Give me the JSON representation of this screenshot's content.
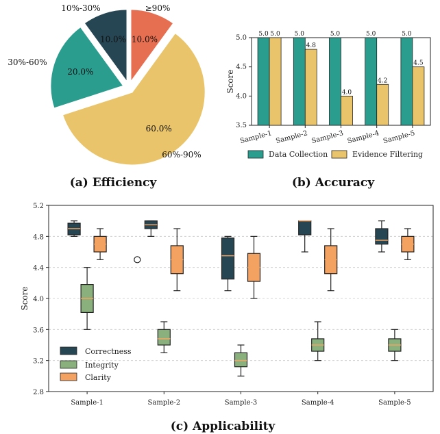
{
  "colors": {
    "dark": "#264653",
    "teal": "#2a9d8f",
    "sand": "#e9c46a",
    "orange": "#e76f51",
    "integrity": "#8ab17d",
    "clarity": "#f4a261",
    "median": "#f4a261"
  },
  "chart_data": [
    {
      "type": "pie",
      "caption": "(a) Efficiency",
      "slices": [
        {
          "label": "≥90%",
          "value": 10.0,
          "pct_label": "10.0%",
          "color": "#e76f51"
        },
        {
          "label": "60%-90%",
          "value": 60.0,
          "pct_label": "60.0%",
          "color": "#e9c46a"
        },
        {
          "label": "30%-60%",
          "value": 20.0,
          "pct_label": "20.0%",
          "color": "#2a9d8f"
        },
        {
          "label": "10%-30%",
          "value": 10.0,
          "pct_label": "10.0%",
          "color": "#264653"
        }
      ]
    },
    {
      "type": "bar",
      "caption": "(b) Accuracy",
      "ylabel": "Score",
      "ylim": [
        3.5,
        5.0
      ],
      "yticks": [
        "3.5",
        "4.0",
        "4.5",
        "5.0"
      ],
      "categories": [
        "Sample-1",
        "Sample-2",
        "Sample-3",
        "Sample-4",
        "Sample-5"
      ],
      "series": [
        {
          "name": "Data Collection",
          "color": "#2a9d8f",
          "values": [
            5.0,
            5.0,
            5.0,
            5.0,
            5.0
          ],
          "labels": [
            "5.0",
            "5.0",
            "5.0",
            "5.0",
            "5.0"
          ]
        },
        {
          "name": "Evidence Filtering",
          "color": "#e9c46a",
          "values": [
            5.0,
            4.8,
            4.0,
            4.2,
            4.5
          ],
          "labels": [
            "5.0",
            "4.8",
            "4.0",
            "4.2",
            "4.5"
          ]
        }
      ],
      "legend": "bottom"
    },
    {
      "type": "box",
      "caption": "(c) Applicability",
      "ylabel": "Score",
      "ylim": [
        2.8,
        5.2
      ],
      "yticks": [
        "2.8",
        "3.2",
        "3.6",
        "4.0",
        "4.4",
        "4.8",
        "5.2"
      ],
      "grid": true,
      "categories": [
        "Sample-1",
        "Sample-2",
        "Sample-3",
        "Sample-4",
        "Sample-5"
      ],
      "series": [
        {
          "name": "Correctness",
          "color": "#264653",
          "boxes": [
            {
              "min": 4.8,
              "q1": 4.82,
              "median": 4.9,
              "q3": 4.97,
              "max": 5.0,
              "outliers": []
            },
            {
              "min": 4.8,
              "q1": 4.9,
              "median": 4.95,
              "q3": 5.0,
              "max": 5.0,
              "outliers": [
                4.5
              ]
            },
            {
              "min": 4.1,
              "q1": 4.25,
              "median": 4.55,
              "q3": 4.78,
              "max": 4.8,
              "outliers": []
            },
            {
              "min": 4.6,
              "q1": 4.82,
              "median": 5.0,
              "q3": 5.0,
              "max": 5.0,
              "outliers": []
            },
            {
              "min": 4.6,
              "q1": 4.7,
              "median": 4.75,
              "q3": 4.9,
              "max": 5.0,
              "outliers": []
            }
          ]
        },
        {
          "name": "Integrity",
          "color": "#8ab17d",
          "boxes": [
            {
              "min": 3.6,
              "q1": 3.82,
              "median": 4.0,
              "q3": 4.18,
              "max": 4.4,
              "outliers": []
            },
            {
              "min": 3.3,
              "q1": 3.4,
              "median": 3.48,
              "q3": 3.6,
              "max": 3.7,
              "outliers": []
            },
            {
              "min": 3.0,
              "q1": 3.12,
              "median": 3.2,
              "q3": 3.3,
              "max": 3.4,
              "outliers": []
            },
            {
              "min": 3.2,
              "q1": 3.32,
              "median": 3.4,
              "q3": 3.48,
              "max": 3.7,
              "outliers": []
            },
            {
              "min": 3.2,
              "q1": 3.32,
              "median": 3.4,
              "q3": 3.48,
              "max": 3.6,
              "outliers": []
            }
          ]
        },
        {
          "name": "Clarity",
          "color": "#f4a261",
          "boxes": [
            {
              "min": 4.5,
              "q1": 4.6,
              "median": 4.7,
              "q3": 4.8,
              "max": 4.9,
              "outliers": []
            },
            {
              "min": 4.1,
              "q1": 4.32,
              "median": 4.5,
              "q3": 4.68,
              "max": 4.9,
              "outliers": []
            },
            {
              "min": 4.0,
              "q1": 4.22,
              "median": 4.4,
              "q3": 4.58,
              "max": 4.8,
              "outliers": []
            },
            {
              "min": 4.1,
              "q1": 4.32,
              "median": 4.5,
              "q3": 4.68,
              "max": 4.9,
              "outliers": []
            },
            {
              "min": 4.5,
              "q1": 4.6,
              "median": 4.7,
              "q3": 4.8,
              "max": 4.9,
              "outliers": []
            }
          ]
        }
      ],
      "legend": "bottom-left"
    }
  ]
}
